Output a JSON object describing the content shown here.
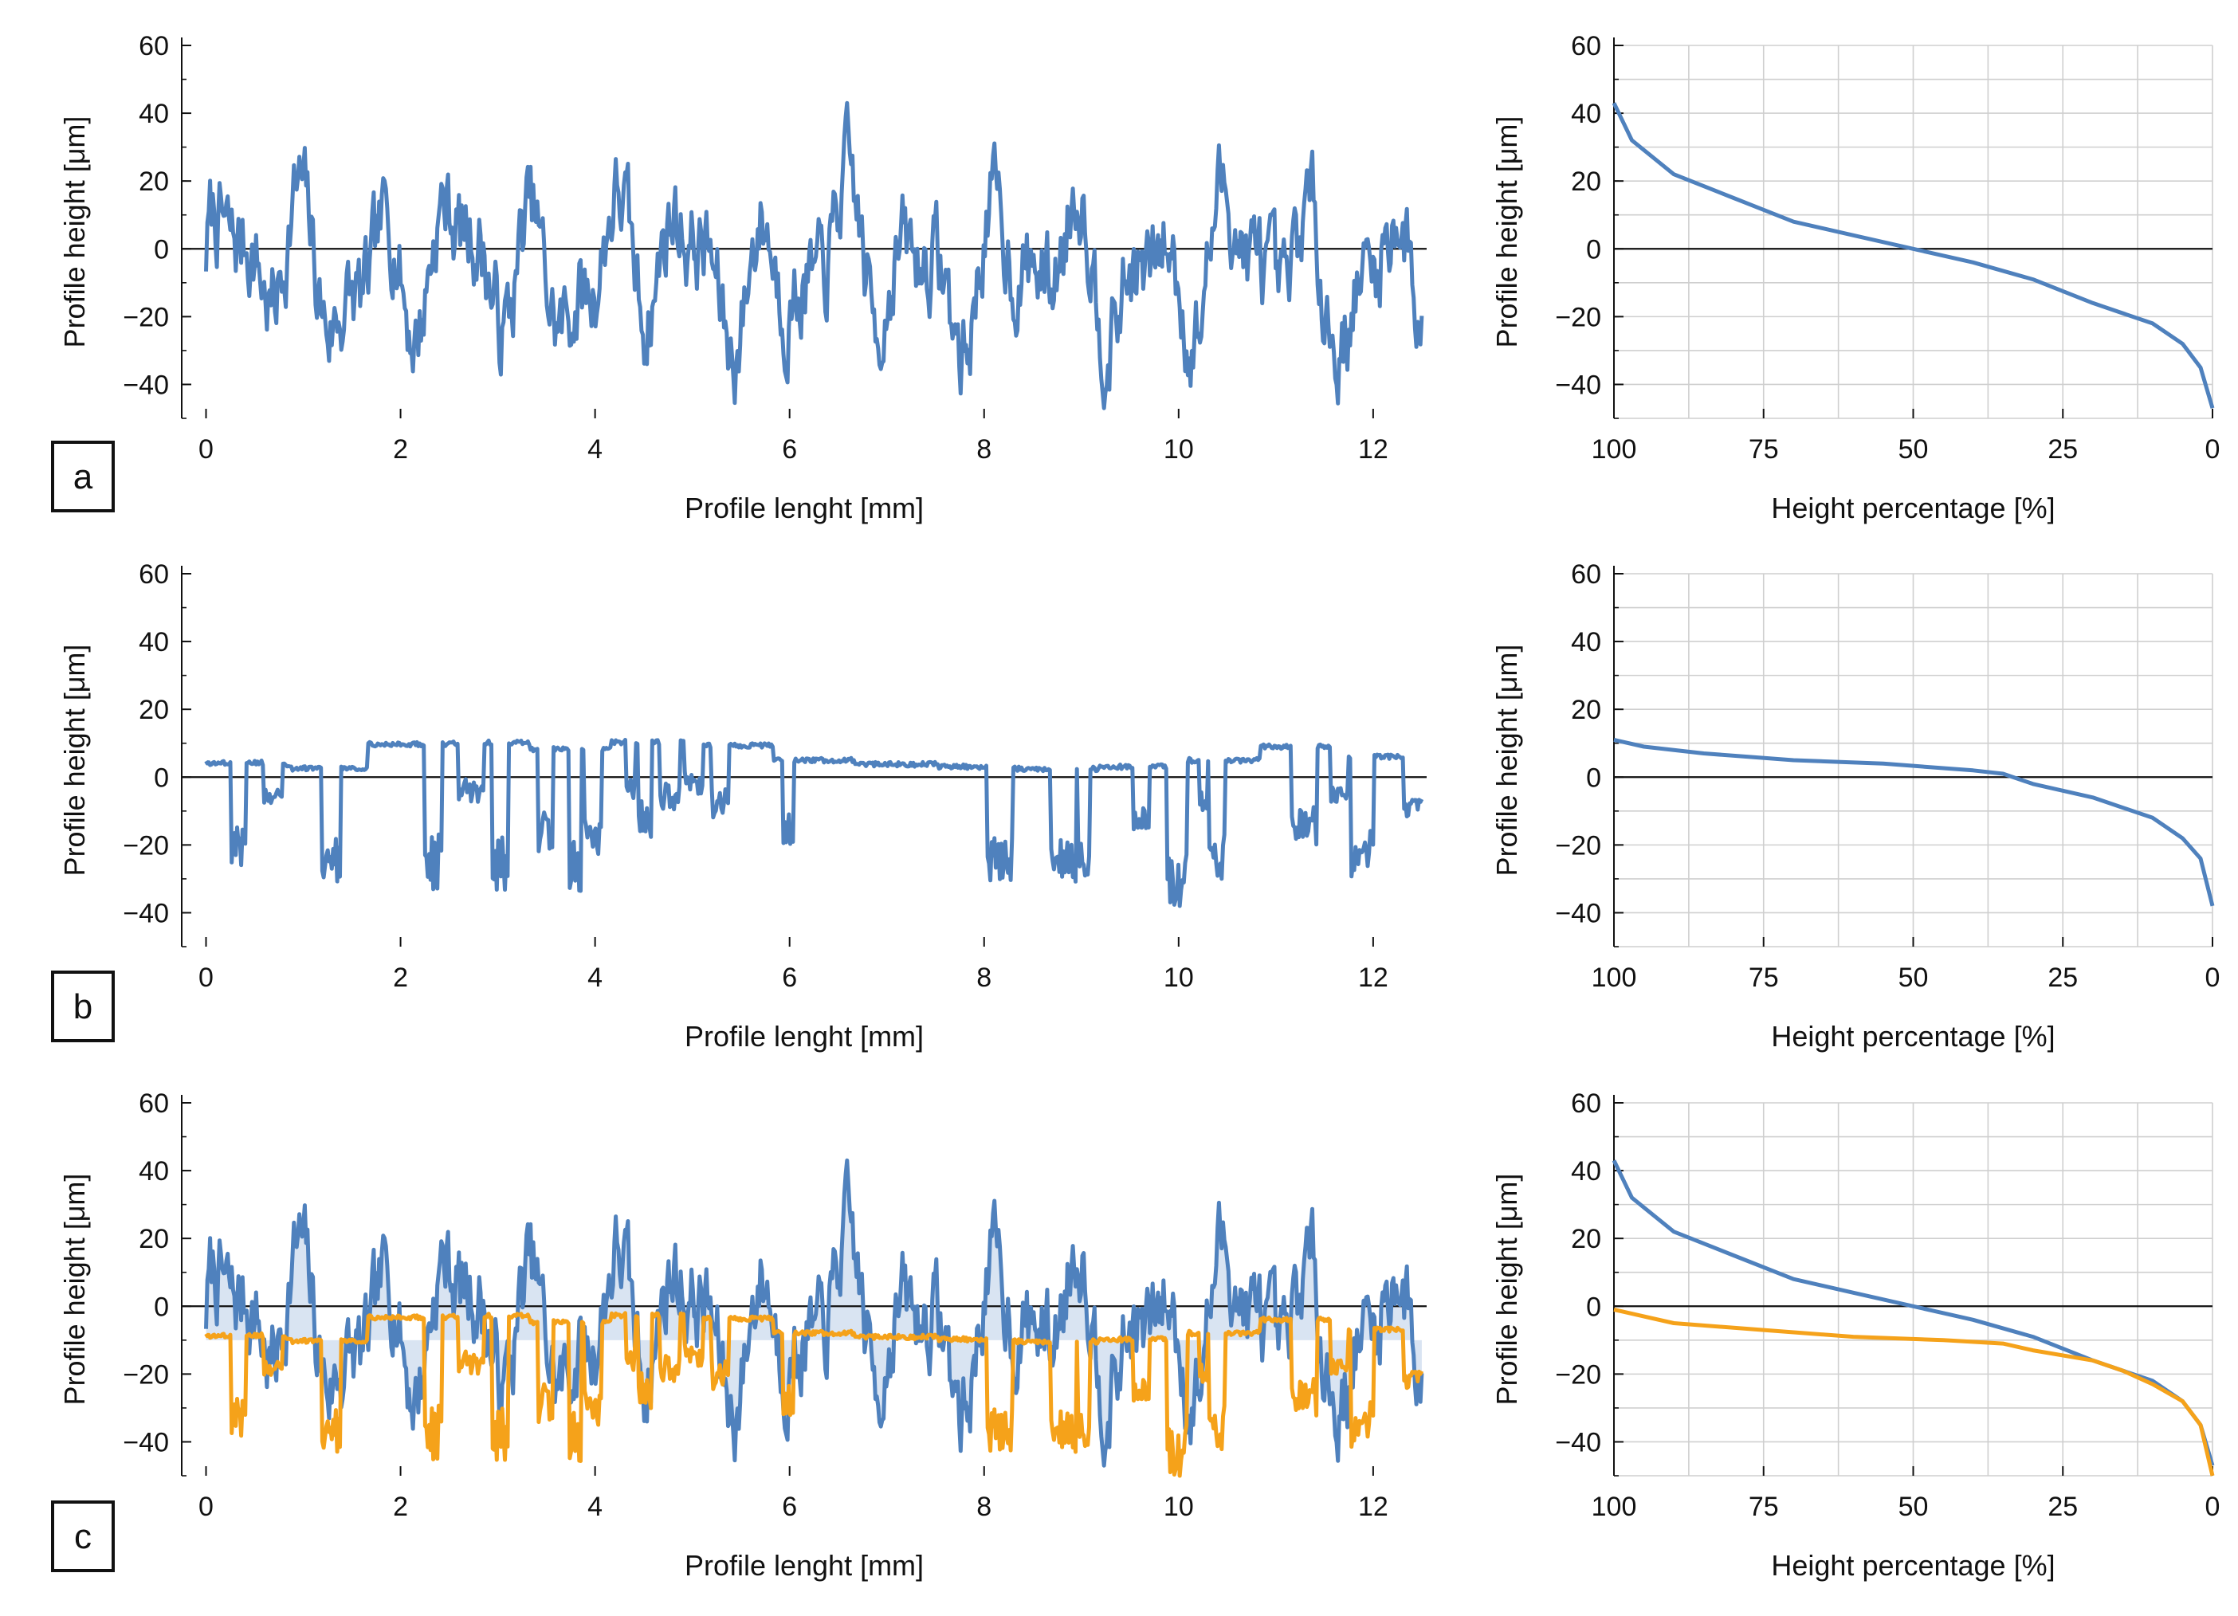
{
  "colors": {
    "blue": "#4f81bd",
    "orange": "#f5a21a",
    "fill_blue": "#d9e4f2",
    "axis": "#111111",
    "grid": "#cfcfcf"
  },
  "chart_data": [
    {
      "id": "a-profile",
      "type": "line",
      "panel": "a",
      "xlabel": "Profile lenght [mm]",
      "ylabel": "Profile height [μm]",
      "xlim": [
        -0.25,
        12.55
      ],
      "ylim": [
        -50,
        60
      ],
      "xticks": [
        0,
        2,
        4,
        6,
        8,
        10,
        12
      ],
      "yticks": [
        -40,
        -20,
        0,
        20,
        40,
        60
      ],
      "grid": false,
      "series": [
        {
          "name": "profile",
          "color": "blue",
          "model": "raw",
          "x_range": [
            0,
            12.5
          ],
          "ymin": -47,
          "ymax": 43,
          "seed": 7
        }
      ]
    },
    {
      "id": "a-abbott",
      "type": "line",
      "panel": "a",
      "xlabel": "Height percentage [%]",
      "ylabel": "Profile height [μm]",
      "xlim": [
        100,
        0
      ],
      "ylim": [
        -50,
        60
      ],
      "xticks": [
        100,
        75,
        50,
        25,
        0
      ],
      "yticks": [
        -40,
        -20,
        0,
        20,
        40,
        60
      ],
      "grid": true,
      "series": [
        {
          "name": "bearing-curve",
          "color": "blue",
          "x": [
            100,
            97,
            90,
            80,
            70,
            60,
            50,
            40,
            30,
            20,
            10,
            5,
            2,
            0
          ],
          "y": [
            43,
            32,
            22,
            15,
            8,
            4,
            0,
            -4,
            -9,
            -16,
            -22,
            -28,
            -35,
            -47
          ]
        }
      ]
    },
    {
      "id": "b-profile",
      "type": "line",
      "panel": "b",
      "xlabel": "Profile lenght [mm]",
      "ylabel": "Profile height [μm]",
      "xlim": [
        -0.25,
        12.55
      ],
      "ylim": [
        -50,
        60
      ],
      "xticks": [
        0,
        2,
        4,
        6,
        8,
        10,
        12
      ],
      "yticks": [
        -40,
        -20,
        0,
        20,
        40,
        60
      ],
      "grid": false,
      "series": [
        {
          "name": "profile",
          "color": "blue",
          "model": "plateau",
          "x_range": [
            0,
            12.5
          ],
          "ymin": -38,
          "ymax": 11,
          "seed": 3
        }
      ]
    },
    {
      "id": "b-abbott",
      "type": "line",
      "panel": "b",
      "xlabel": "Height percentage [%]",
      "ylabel": "Profile height [μm]",
      "xlim": [
        100,
        0
      ],
      "ylim": [
        -50,
        60
      ],
      "xticks": [
        100,
        75,
        50,
        25,
        0
      ],
      "yticks": [
        -40,
        -20,
        0,
        20,
        40,
        60
      ],
      "grid": true,
      "series": [
        {
          "name": "bearing-curve",
          "color": "blue",
          "x": [
            100,
            95,
            85,
            70,
            55,
            40,
            35,
            30,
            20,
            10,
            5,
            2,
            0
          ],
          "y": [
            11,
            9,
            7,
            5,
            4,
            2,
            1,
            -2,
            -6,
            -12,
            -18,
            -24,
            -38
          ]
        }
      ]
    },
    {
      "id": "c-profile",
      "type": "line",
      "panel": "c",
      "xlabel": "Profile lenght [mm]",
      "ylabel": "Profile height [μm]",
      "xlim": [
        -0.25,
        12.55
      ],
      "ylim": [
        -50,
        60
      ],
      "xticks": [
        0,
        2,
        4,
        6,
        8,
        10,
        12
      ],
      "yticks": [
        -40,
        -20,
        0,
        20,
        40,
        60
      ],
      "grid": false,
      "series": [
        {
          "name": "profile-raw",
          "color": "blue",
          "model": "raw",
          "x_range": [
            0,
            12.5
          ],
          "ymin": -47,
          "ymax": 43,
          "seed": 7,
          "fill_to": -10
        },
        {
          "name": "profile-worn",
          "color": "orange",
          "model": "plateau",
          "x_range": [
            0,
            12.5
          ],
          "ymin": -50,
          "ymax": -2,
          "seed": 3
        }
      ]
    },
    {
      "id": "c-abbott",
      "type": "line",
      "panel": "c",
      "xlabel": "Height percentage [%]",
      "ylabel": "Profile height [μm]",
      "xlim": [
        100,
        0
      ],
      "ylim": [
        -50,
        60
      ],
      "xticks": [
        100,
        75,
        50,
        25,
        0
      ],
      "yticks": [
        -40,
        -20,
        0,
        20,
        40,
        60
      ],
      "grid": true,
      "series": [
        {
          "name": "bearing-curve-raw",
          "color": "blue",
          "x": [
            100,
            97,
            90,
            80,
            70,
            60,
            50,
            40,
            30,
            20,
            10,
            5,
            2,
            0
          ],
          "y": [
            43,
            32,
            22,
            15,
            8,
            4,
            0,
            -4,
            -9,
            -16,
            -22,
            -28,
            -35,
            -47
          ]
        },
        {
          "name": "bearing-curve-worn",
          "color": "orange",
          "x": [
            100,
            90,
            75,
            60,
            45,
            35,
            30,
            20,
            15,
            10,
            5,
            2,
            0
          ],
          "y": [
            -1,
            -5,
            -7,
            -9,
            -10,
            -11,
            -13,
            -16,
            -19,
            -23,
            -28,
            -35,
            -50
          ]
        }
      ]
    }
  ]
}
